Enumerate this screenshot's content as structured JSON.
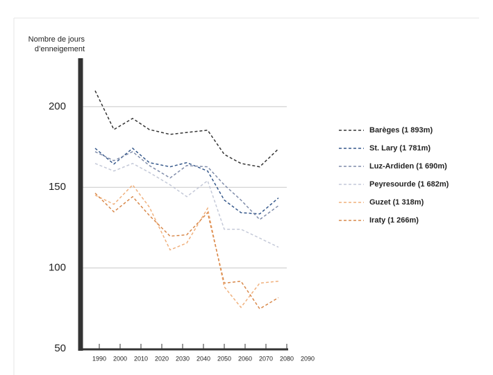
{
  "chart_data": {
    "type": "line",
    "y_label": [
      "Nombre de jours",
      "d’enneigement"
    ],
    "x": [
      1988,
      1997,
      2006,
      2014,
      2024,
      2032,
      2042,
      2050,
      2058,
      2067,
      2076
    ],
    "series": [
      {
        "name": "Barèges (1 893m)",
        "color": "#333333",
        "values": [
          209.9,
          185.8,
          192.7,
          185.8,
          182.8,
          184,
          185.4,
          170.4,
          164.8,
          162.7,
          173.8
        ]
      },
      {
        "name": "St. Lary (1 781m)",
        "color": "#34578a",
        "values": [
          174.2,
          164.4,
          174.2,
          165.3,
          162.7,
          165.3,
          160.1,
          142.1,
          134.3,
          133.5,
          143.4
        ]
      },
      {
        "name": "Luz-Ardiden (1 690m)",
        "color": "#7f8caa",
        "values": [
          172.1,
          166.5,
          172.1,
          163.5,
          155.8,
          163.5,
          162.7,
          151.5,
          142.1,
          130,
          138.6
        ]
      },
      {
        "name": "Peyresourde (1 682m)",
        "color": "#c4c9d8",
        "values": [
          164.8,
          160.1,
          164.8,
          159.2,
          151.5,
          144.2,
          154.1,
          124,
          124,
          118.5,
          112.9
        ]
      },
      {
        "name": "Guzet (1 318m)",
        "color": "#f0b07c",
        "values": [
          145.1,
          139.5,
          151.5,
          137.8,
          111.2,
          115.5,
          137,
          88.3,
          75.6,
          90.6,
          91.8
        ]
      },
      {
        "name": "Iraty (1 266m)",
        "color": "#d8884a",
        "values": [
          146.4,
          134.8,
          144.2,
          132.6,
          119.7,
          120.6,
          134.3,
          90.6,
          91.8,
          74.7,
          81.6
        ]
      }
    ],
    "xlim": [
      1981,
      2080
    ],
    "ylim": [
      50,
      230
    ],
    "xticks": [
      1990,
      2000,
      2010,
      2020,
      2030,
      2040,
      2050,
      2060,
      2070,
      2080,
      2090
    ],
    "yticks": [
      50,
      100,
      150,
      200
    ],
    "grid": true,
    "legend": "right"
  }
}
